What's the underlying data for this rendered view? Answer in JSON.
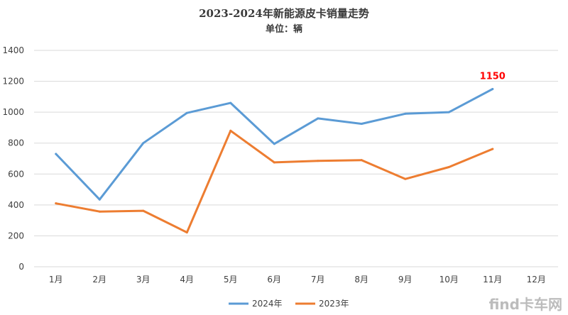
{
  "chart_data": {
    "type": "line",
    "title": "2023-2024年新能源皮卡销量走势",
    "subtitle": "单位：辆",
    "categories": [
      "1月",
      "2月",
      "3月",
      "4月",
      "5月",
      "6月",
      "7月",
      "8月",
      "9月",
      "10月",
      "11月",
      "12月"
    ],
    "series": [
      {
        "name": "2024年",
        "color": "#5b9bd5",
        "values": [
          730,
          435,
          800,
          995,
          1060,
          795,
          960,
          925,
          990,
          1000,
          1150,
          null
        ]
      },
      {
        "name": "2023年",
        "color": "#ed7d31",
        "values": [
          410,
          357,
          362,
          222,
          880,
          675,
          685,
          690,
          568,
          645,
          762,
          null
        ]
      }
    ],
    "ylim": [
      0,
      1400
    ],
    "yticks": [
      "0",
      "200",
      "400",
      "600",
      "800",
      "1000",
      "1200",
      "1400"
    ],
    "grid": true,
    "legend_position": "bottom",
    "annotation": {
      "text": "1150",
      "series": 0,
      "index": 10,
      "color": "#ff0000"
    }
  },
  "watermark": {
    "text": "find卡车网",
    "color": "#a0a0a0"
  }
}
